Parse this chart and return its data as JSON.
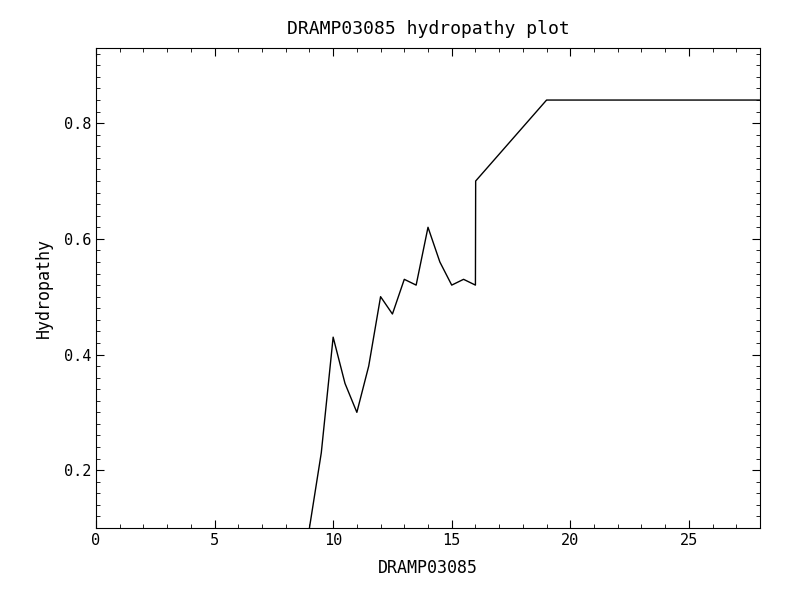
{
  "title": "DRAMP03085 hydropathy plot",
  "xlabel": "DRAMP03085",
  "ylabel": "Hydropathy",
  "x": [
    9.0,
    9.5,
    10.0,
    10.5,
    11.0,
    11.5,
    12.0,
    12.5,
    13.0,
    13.5,
    14.0,
    14.5,
    15.0,
    15.5,
    16.0,
    16.01,
    19.0,
    19.01,
    20.0,
    28.0
  ],
  "y": [
    0.1,
    0.23,
    0.43,
    0.35,
    0.3,
    0.38,
    0.5,
    0.47,
    0.53,
    0.52,
    0.62,
    0.56,
    0.52,
    0.53,
    0.52,
    0.7,
    0.84,
    0.84,
    0.84,
    0.84
  ],
  "xlim": [
    0,
    28
  ],
  "ylim": [
    0.1,
    0.93
  ],
  "xticks": [
    0,
    5,
    10,
    15,
    20,
    25
  ],
  "yticks": [
    0.2,
    0.4,
    0.6,
    0.8
  ],
  "line_color": "#000000",
  "line_width": 1.0,
  "bg_color": "#ffffff",
  "title_fontsize": 13,
  "label_fontsize": 12,
  "tick_fontsize": 11,
  "font_family": "monospace"
}
